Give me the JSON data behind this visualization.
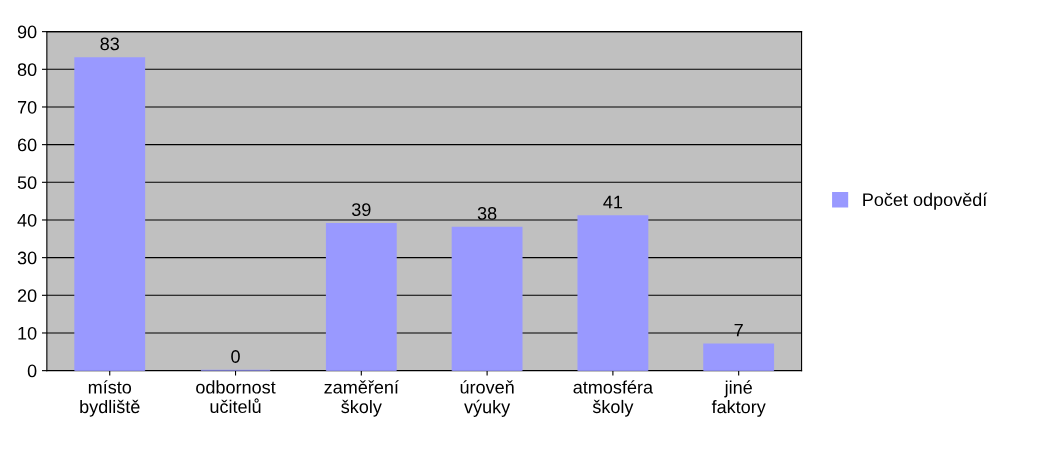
{
  "chart_data": {
    "type": "bar",
    "categories": [
      "místo\nbydliště",
      "odbornost\nučitelů",
      "zaměření\nškoly",
      "úroveň\nvýuky",
      "atmosféra\nškoly",
      "jiné\nfaktory"
    ],
    "series": [
      {
        "name": "Počet odpovědí",
        "color": "#9999ff",
        "values": [
          83,
          0,
          39,
          38,
          41,
          7
        ]
      }
    ],
    "ylim": [
      0,
      90
    ],
    "yticks": [
      0,
      10,
      20,
      30,
      40,
      50,
      60,
      70,
      80,
      90
    ],
    "grid": "y",
    "legend": "right",
    "data_labels": true
  }
}
